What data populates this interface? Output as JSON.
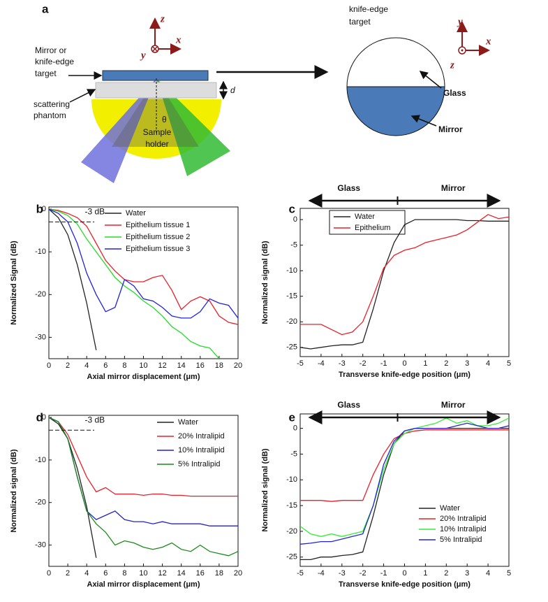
{
  "diagram": {
    "panel": "a",
    "top_axes": [
      "z",
      "x",
      "y"
    ],
    "mirror_label": [
      "Mirror or",
      "knife-edge",
      "target"
    ],
    "phantom_label": [
      "scattering",
      "phantom"
    ],
    "thickness": "d",
    "angle": "θ",
    "holder_label": [
      "Sample",
      "holder"
    ],
    "target_title": [
      "knife-edge",
      "target"
    ],
    "glass": "Glass",
    "mirror": "Mirror",
    "right_axes": [
      "y",
      "x",
      "z"
    ]
  },
  "chart_data": [
    {
      "type": "line",
      "panel": "b",
      "xlabel": "Axial mirror displacement (μm)",
      "ylabel": "Normalized Signal (dB)",
      "x": [
        0,
        1,
        2,
        3,
        4,
        5,
        6,
        7,
        8,
        9,
        10,
        11,
        12,
        13,
        14,
        15,
        16,
        17,
        18,
        19,
        20
      ],
      "series": [
        {
          "name": "Water",
          "color": "#222222",
          "values": [
            0,
            -2,
            -6,
            -13,
            -22,
            -33,
            null,
            null,
            null,
            null,
            null,
            null,
            null,
            null,
            null,
            null,
            null,
            null,
            null,
            null,
            null
          ]
        },
        {
          "name": "Epithelium tissue 1",
          "color": "#e8202a",
          "values": [
            0,
            -0.3,
            -1,
            -2,
            -4,
            -8,
            -12,
            -14.5,
            -16.5,
            -17,
            -17,
            -16,
            -15.5,
            -19,
            -23.5,
            -21.5,
            -20.5,
            -21.5,
            -25,
            -26.5,
            -27
          ]
        },
        {
          "name": "Epithelium tissue 2",
          "color": "#22dd22",
          "values": [
            0,
            -0.5,
            -1.5,
            -3.5,
            -7,
            -10,
            -13,
            -16,
            -18,
            -19.5,
            -21.5,
            -23,
            -25,
            -27.5,
            -29,
            -31,
            -32,
            -32.5,
            -35,
            null,
            null
          ]
        },
        {
          "name": "Epithelium tissue 3",
          "color": "#2222dd",
          "values": [
            0,
            -1,
            -3,
            -8,
            -15,
            -20,
            -24,
            -23,
            -16.5,
            -18,
            -21,
            -21.5,
            -23,
            -25,
            -25.5,
            -25.5,
            -24,
            -21,
            -22,
            -22.5,
            -25.5
          ]
        }
      ],
      "xlim": [
        0,
        20
      ],
      "ylim": [
        -35,
        0.5
      ],
      "xticks": [
        0,
        2,
        4,
        6,
        8,
        10,
        12,
        14,
        16,
        18,
        20
      ],
      "yticks": [
        0,
        -10,
        -20,
        -30
      ],
      "annotation": "-3 dB",
      "threshold": -3,
      "legend": "upper right"
    },
    {
      "type": "line",
      "panel": "c",
      "xlabel": "Transverse knife-edge position (μm)",
      "ylabel": "Normalized signal (dB)",
      "x": [
        -5,
        -4.5,
        -4,
        -3.5,
        -3,
        -2.5,
        -2,
        -1.5,
        -1,
        -0.5,
        0,
        0.5,
        1,
        1.5,
        2,
        2.5,
        3,
        3.5,
        4,
        4.5,
        5
      ],
      "series": [
        {
          "name": "Water",
          "color": "#222222",
          "values": [
            -25,
            -25.3,
            -25,
            -24.7,
            -24.5,
            -24.5,
            -24,
            -17.5,
            -10,
            -4.5,
            -1,
            0,
            0,
            0,
            0,
            0,
            -0.2,
            -0.2,
            -0.3,
            -0.3,
            -0.3
          ]
        },
        {
          "name": "Epithelium",
          "color": "#e8202a",
          "values": [
            -20.5,
            -20.5,
            -20.5,
            -21.5,
            -22.5,
            -22,
            -20,
            -15,
            -9.5,
            -7,
            -6,
            -5.5,
            -4.5,
            -4,
            -3.5,
            -3,
            -2,
            -0.5,
            1,
            0.2,
            0.5
          ]
        }
      ],
      "xlim": [
        -5,
        5
      ],
      "ylim": [
        -26.8,
        2.2
      ],
      "xticks": [
        -5,
        -4,
        -3,
        -2,
        -1,
        0,
        1,
        2,
        3,
        4,
        5
      ],
      "yticks": [
        0,
        -5,
        -10,
        -15,
        -20,
        -25
      ],
      "regions": [
        "Glass",
        "Mirror"
      ],
      "legend": "upper left"
    },
    {
      "type": "line",
      "panel": "d",
      "xlabel": "Axial mirror displacement (μm)",
      "ylabel": "Normalized signal (dB)",
      "x": [
        0,
        1,
        2,
        3,
        4,
        5,
        6,
        7,
        8,
        9,
        10,
        11,
        12,
        13,
        14,
        15,
        16,
        17,
        18,
        19,
        20
      ],
      "series": [
        {
          "name": "Water",
          "color": "#222222",
          "values": [
            0,
            -1.5,
            -5,
            -12,
            -21,
            -33,
            null,
            null,
            null,
            null,
            null,
            null,
            null,
            null,
            null,
            null,
            null,
            null,
            null,
            null,
            null
          ]
        },
        {
          "name": "20% Intralipid",
          "color": "#e8202a",
          "values": [
            0,
            -1,
            -4,
            -9,
            -14,
            -17.5,
            -16.5,
            -18,
            -18,
            -18,
            -18.3,
            -18,
            -18,
            -18.3,
            -18.3,
            -18.5,
            -18.5,
            -18.5,
            -18.5,
            -18.5,
            -18.5
          ]
        },
        {
          "name": "10% Intralipid",
          "color": "#2222cc",
          "values": [
            0,
            -1,
            -5,
            -14,
            -22,
            -24,
            -23,
            -22,
            -24,
            -24.5,
            -24.5,
            -25,
            -24.5,
            -25,
            -25,
            -25,
            -25,
            -25.5,
            -25.5,
            -25.5,
            -25.5
          ]
        },
        {
          "name": "5% Intralipid",
          "color": "#1a8a1a",
          "values": [
            0,
            -1,
            -5,
            -14,
            -22,
            -25,
            -27,
            -30,
            -29,
            -29.5,
            -30.5,
            -31,
            -30.5,
            -29.5,
            -31,
            -31.5,
            -30,
            -31.5,
            -32,
            -32.5,
            -31.5
          ]
        }
      ],
      "xlim": [
        0,
        20
      ],
      "ylim": [
        -35,
        0.5
      ],
      "xticks": [
        0,
        2,
        4,
        6,
        8,
        10,
        12,
        14,
        16,
        18,
        20
      ],
      "yticks": [
        0,
        -10,
        -20,
        -30
      ],
      "annotation": "-3 dB",
      "threshold": -3,
      "legend": "upper right"
    },
    {
      "type": "line",
      "panel": "e",
      "xlabel": "Transverse knife-edge position (μm)",
      "ylabel": "Normalized signal (dB)",
      "x": [
        -5,
        -4.5,
        -4,
        -3.5,
        -3,
        -2.5,
        -2,
        -1.5,
        -1,
        -0.5,
        0,
        0.5,
        1,
        1.5,
        2,
        2.5,
        3,
        3.5,
        4,
        4.5,
        5
      ],
      "series": [
        {
          "name": "Water",
          "color": "#222222",
          "values": [
            -25.5,
            -25.5,
            -25,
            -25,
            -24.7,
            -24.5,
            -24,
            -17,
            -9,
            -3,
            -0.5,
            0,
            0,
            0,
            0,
            0,
            0,
            0,
            0,
            0,
            0
          ]
        },
        {
          "name": "20% Intralipid",
          "color": "#e8202a",
          "values": [
            -14,
            -14,
            -14,
            -14.2,
            -14,
            -14,
            -14,
            -9,
            -5,
            -2,
            -1,
            -0.5,
            -0.3,
            -0.3,
            -0.3,
            -0.3,
            -0.3,
            -0.3,
            -0.3,
            -0.3,
            -0.3
          ]
        },
        {
          "name": "10% Intralipid",
          "color": "#33ee33",
          "values": [
            -19,
            -20.5,
            -21,
            -20.5,
            -21,
            -20.5,
            -20,
            -15,
            -8,
            -3,
            -1,
            0,
            0.5,
            1,
            2,
            1,
            1.5,
            0.5,
            0.5,
            1,
            2
          ]
        },
        {
          "name": "5% Intralipid",
          "color": "#2222dd",
          "values": [
            -22.5,
            -22.3,
            -22,
            -22,
            -21.5,
            -21,
            -20.5,
            -15,
            -7,
            -2.5,
            -0.5,
            0,
            0,
            0,
            0,
            0.5,
            1,
            0.5,
            0,
            0,
            0.5
          ]
        }
      ],
      "xlim": [
        -5,
        5
      ],
      "ylim": [
        -26.8,
        2.8
      ],
      "xticks": [
        -5,
        -4,
        -3,
        -2,
        -1,
        0,
        1,
        2,
        3,
        4,
        5
      ],
      "yticks": [
        0,
        -5,
        -10,
        -15,
        -20,
        -25
      ],
      "regions": [
        "Glass",
        "Mirror"
      ],
      "legend": "lower right"
    }
  ]
}
